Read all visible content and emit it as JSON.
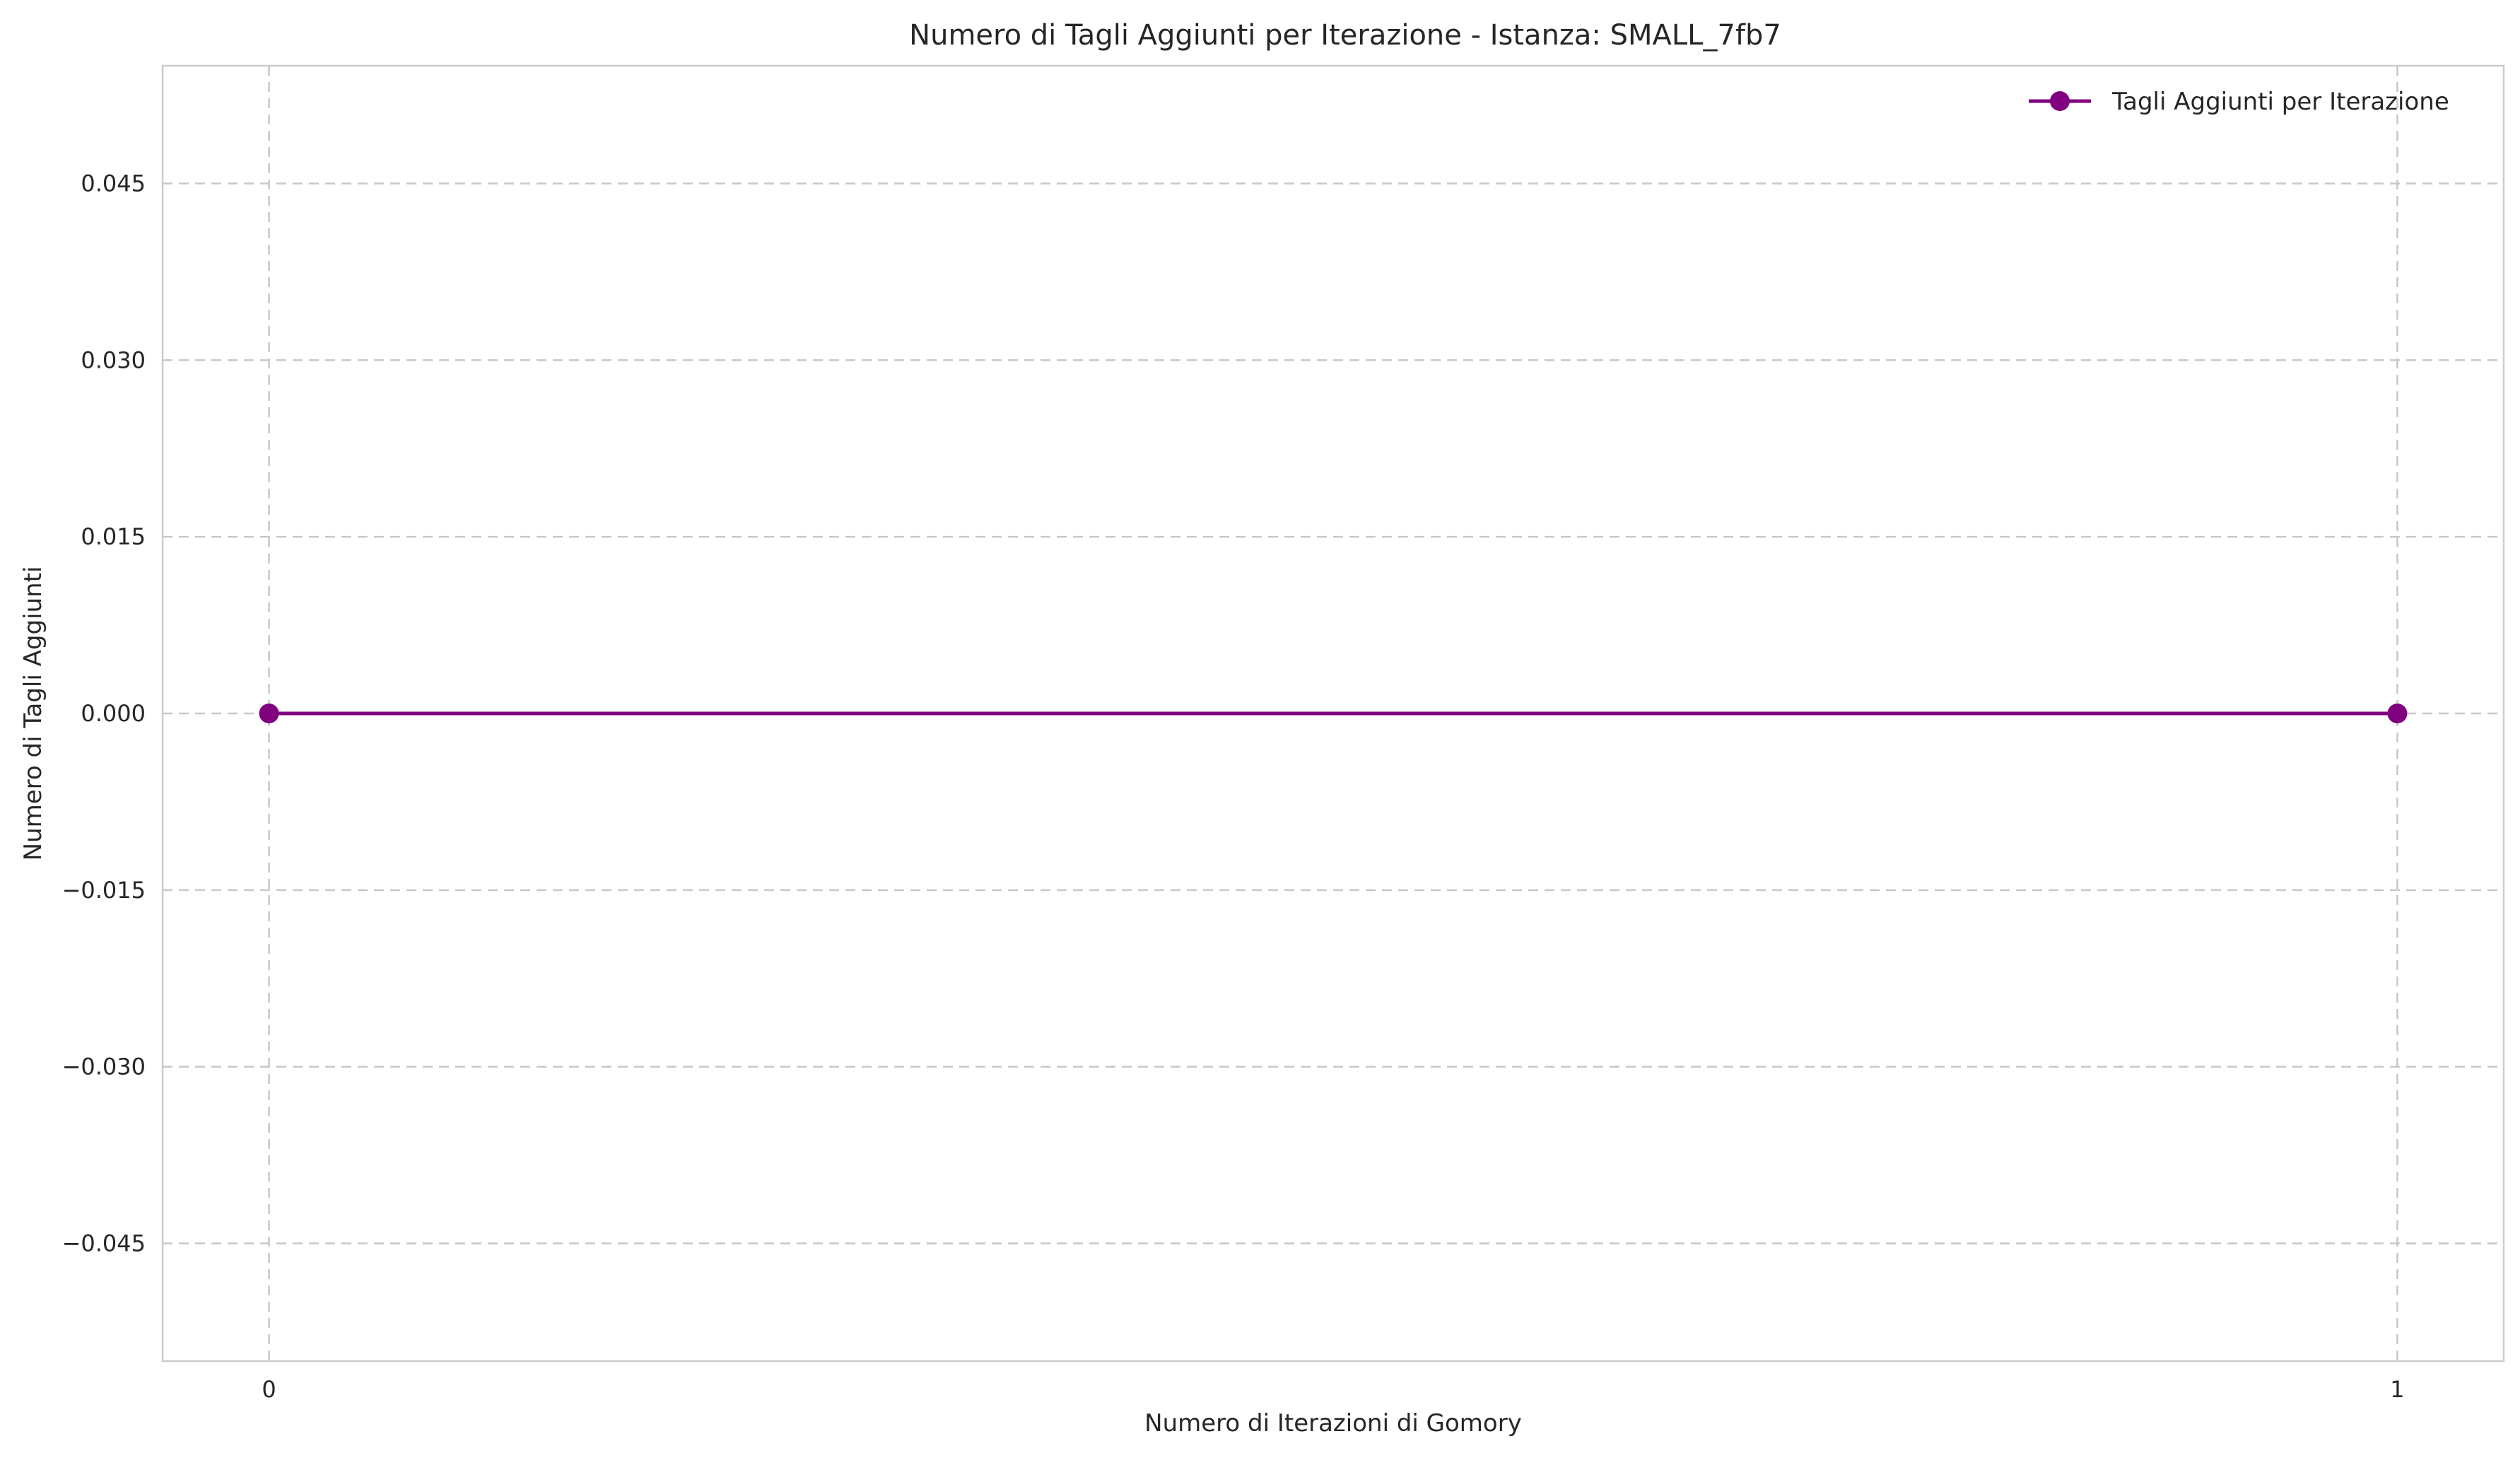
{
  "chart_data": {
    "type": "line",
    "title": "Numero di Tagli Aggiunti per Iterazione - Istanza: SMALL_7fb7",
    "xlabel": "Numero di Iterazioni di Gomory",
    "ylabel": "Numero di Tagli Aggiunti",
    "x": [
      0,
      1
    ],
    "x_ticks": [
      0,
      1
    ],
    "x_tick_labels": [
      "0",
      "1"
    ],
    "xlim": [
      -0.05,
      1.05
    ],
    "ylim": [
      -0.055,
      0.055
    ],
    "y_ticks": [
      0.045,
      0.03,
      0.015,
      0.0,
      -0.015,
      -0.03,
      -0.045
    ],
    "y_tick_labels": [
      "0.045",
      "0.030",
      "0.015",
      "0.000",
      "−0.015",
      "−0.030",
      "−0.045"
    ],
    "series": [
      {
        "name": "Tagli Aggiunti per Iterazione",
        "values": [
          0,
          0
        ],
        "color": "#800080",
        "marker": "circle"
      }
    ],
    "grid": true,
    "legend_position": "top-right"
  }
}
